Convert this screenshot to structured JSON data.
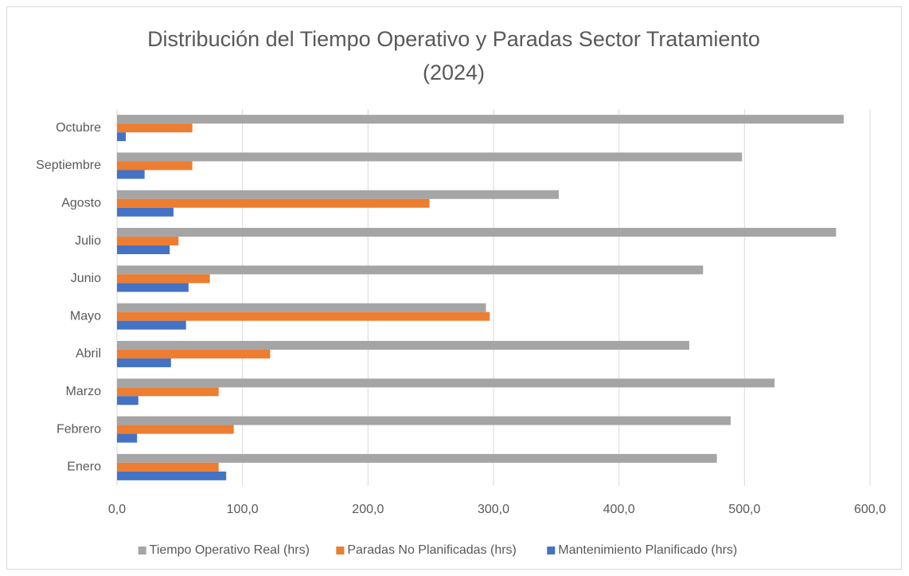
{
  "chart_data": {
    "type": "barh",
    "title": "Distribución del Tiempo Operativo y Paradas Sector Tratamiento (2024)",
    "categories": [
      "Enero",
      "Febrero",
      "Marzo",
      "Abril",
      "Mayo",
      "Junio",
      "Julio",
      "Agosto",
      "Septiembre",
      "Octubre"
    ],
    "series": [
      {
        "name": "Tiempo Operativo Real (hrs)",
        "color": "#a5a5a5",
        "values": [
          478,
          489,
          524,
          456,
          294,
          467,
          573,
          352,
          498,
          579
        ]
      },
      {
        "name": "Paradas No Planificadas (hrs)",
        "color": "#ed7d31",
        "values": [
          81,
          93,
          81,
          122,
          297,
          74,
          49,
          249,
          60,
          60
        ]
      },
      {
        "name": "Mantenimiento Planificado (hrs)",
        "color": "#4472c4",
        "values": [
          87,
          16,
          17,
          43,
          55,
          57,
          42,
          45,
          22,
          7
        ]
      }
    ],
    "xlim": [
      0,
      600
    ],
    "xticks": [
      {
        "value": 0,
        "label": "0,0"
      },
      {
        "value": 100,
        "label": "100,0"
      },
      {
        "value": 200,
        "label": "200,0"
      },
      {
        "value": 300,
        "label": "300,0"
      },
      {
        "value": 400,
        "label": "400,0"
      },
      {
        "value": 500,
        "label": "500,0"
      },
      {
        "value": 600,
        "label": "600,0"
      }
    ],
    "grid": true,
    "legend": "bottom"
  }
}
